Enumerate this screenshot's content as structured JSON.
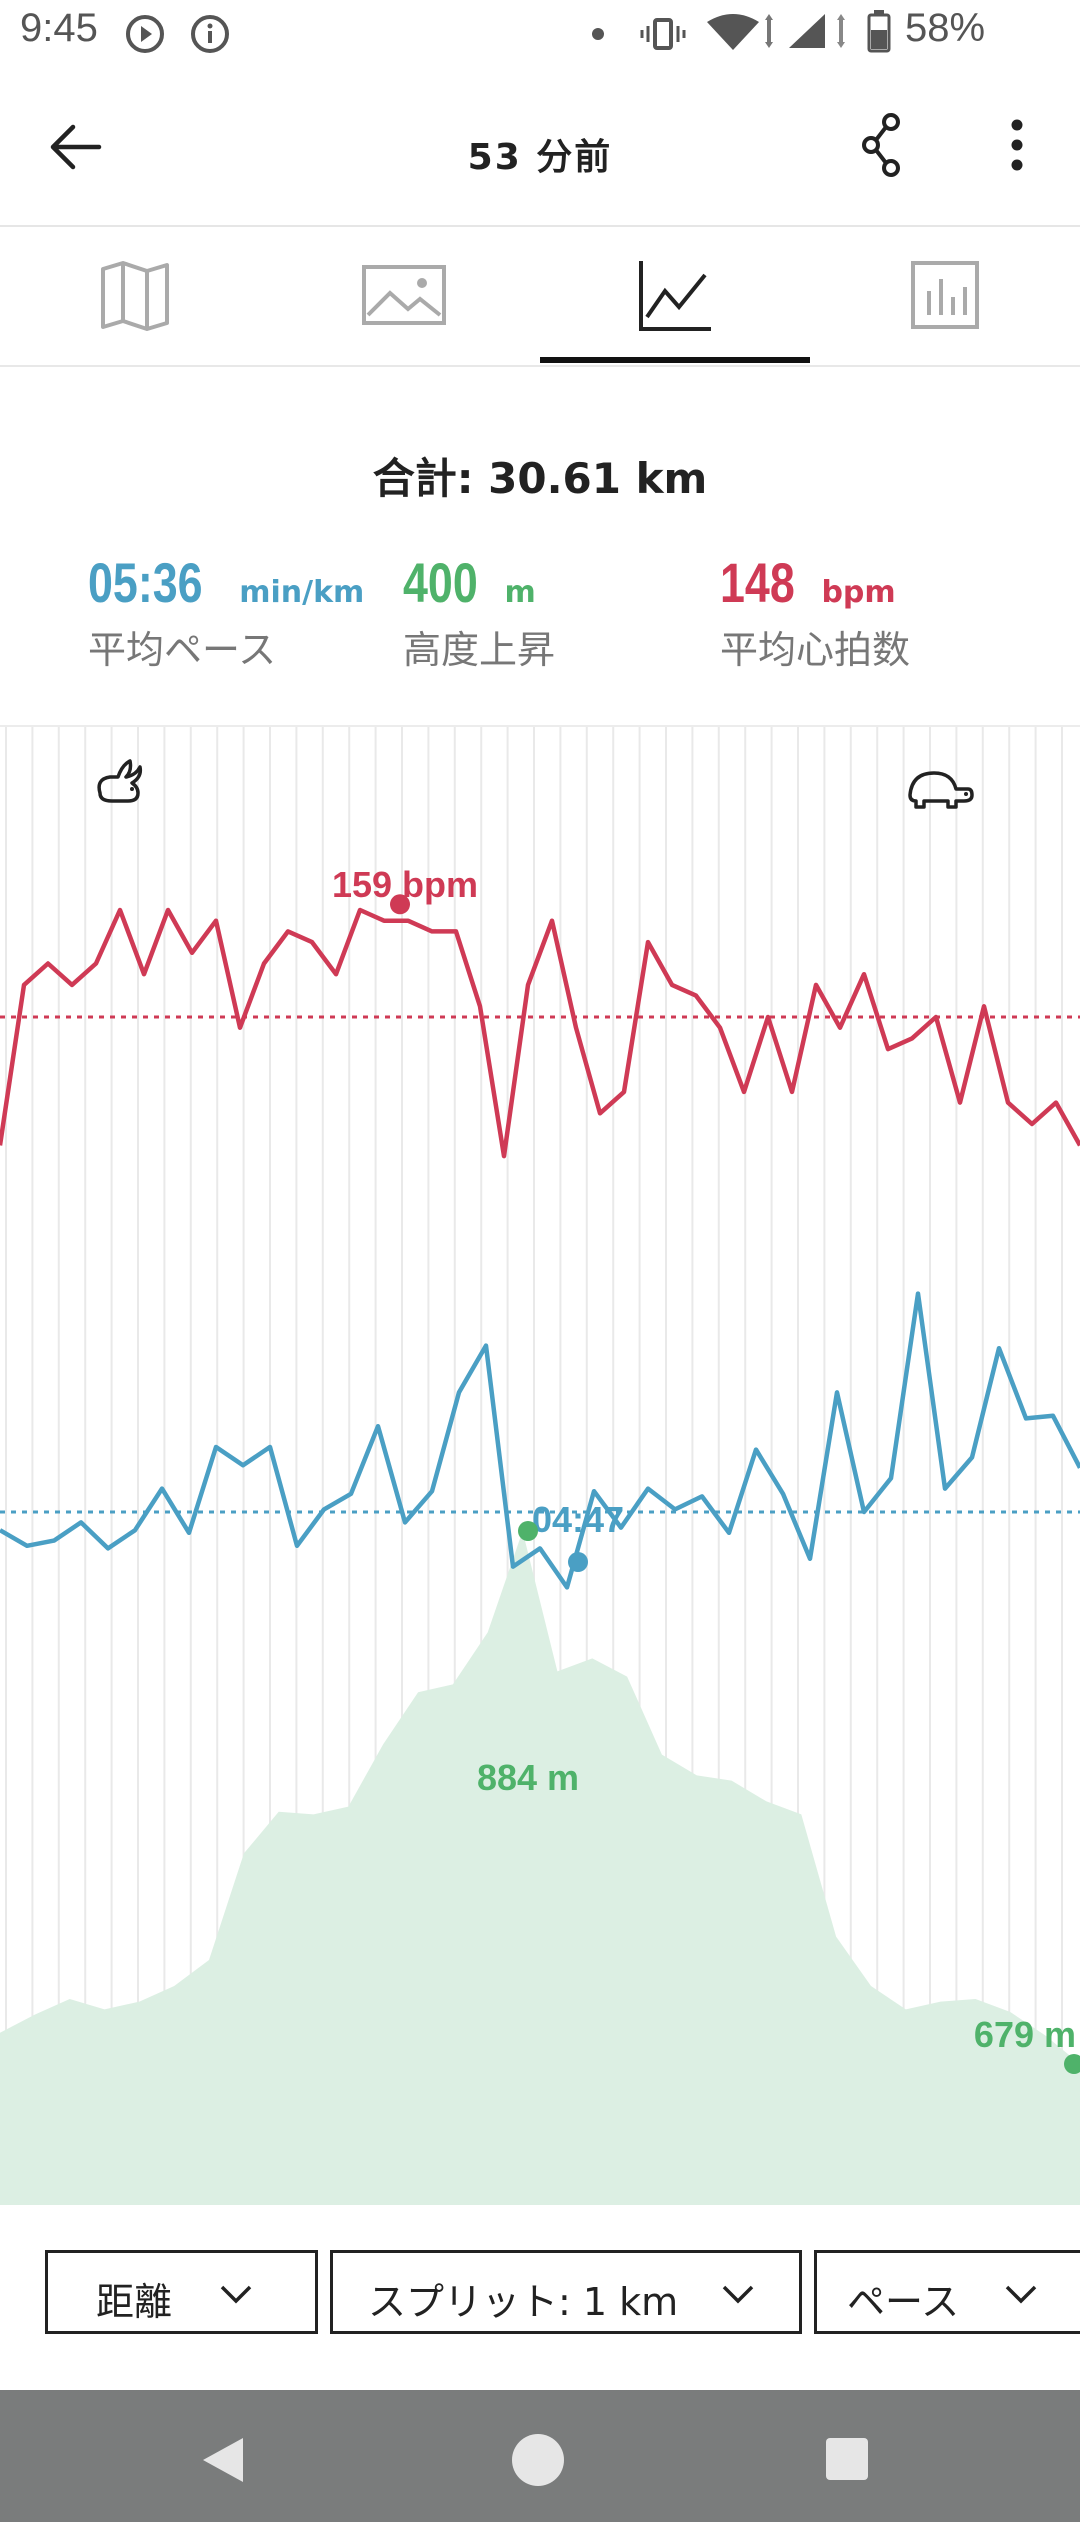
{
  "status_bar": {
    "time": "9:45",
    "battery": "58%"
  },
  "app_bar": {
    "title": "53 分前"
  },
  "tabs": [
    {
      "icon": "map-icon",
      "selected": false
    },
    {
      "icon": "image-icon",
      "selected": false
    },
    {
      "icon": "line-chart-icon",
      "selected": true
    },
    {
      "icon": "bar-chart-icon",
      "selected": false
    }
  ],
  "summary": {
    "total": "合計: 30.61 km",
    "pace_value": "05:36",
    "pace_unit": "min/km",
    "pace_label": "平均ペース",
    "elevation_value": "400",
    "elevation_unit": "m",
    "elevation_label": "高度上昇",
    "heart_value": "148",
    "heart_unit": "bpm",
    "heart_label": "平均心拍数"
  },
  "chart_data": {
    "type": "line",
    "colors": {
      "heart_rate": "#cf3a55",
      "pace": "#4a9fc4",
      "elevation": "#4fb26a",
      "elevation_fill": "#dcefe3"
    },
    "series": [
      {
        "values": [
          136,
          151,
          153,
          151,
          153,
          158,
          152,
          158,
          154,
          157,
          147,
          153,
          156,
          155,
          152,
          158,
          157,
          157,
          156,
          156,
          149,
          135,
          151,
          157,
          147,
          139,
          141,
          155,
          151,
          150,
          147,
          141,
          148,
          141,
          151,
          147,
          152,
          145,
          146,
          148,
          140,
          149,
          140,
          138,
          140,
          136
        ],
        "annotation_value": "159 bpm",
        "average": 148
      },
      {
        "values": [
          5.67,
          5.73,
          5.71,
          5.64,
          5.74,
          5.67,
          5.51,
          5.68,
          5.35,
          5.42,
          5.35,
          5.73,
          5.59,
          5.53,
          5.27,
          5.64,
          5.52,
          5.14,
          4.96,
          5.81,
          5.74,
          5.89,
          5.52,
          5.66,
          5.51,
          5.59,
          5.54,
          5.68,
          5.36,
          5.53,
          5.78,
          5.14,
          5.6,
          5.47,
          4.76,
          5.51,
          5.39,
          4.97,
          5.24,
          5.23,
          5.43
        ],
        "annotation_value": "04:47",
        "average": 5.6
      },
      {
        "values": [
          691,
          698,
          704,
          700,
          703,
          709,
          719,
          760,
          776,
          775,
          778,
          802,
          822,
          825,
          845,
          884,
          830,
          835,
          828,
          798,
          790,
          788,
          780,
          775,
          728,
          709,
          700,
          703,
          704,
          699,
          690,
          679
        ],
        "annotation_value": "884 m",
        "end_value": "679 m"
      }
    ]
  },
  "controls": {
    "x_axis": "距離",
    "split": "スプリット: 1 km",
    "metric": "ペース"
  }
}
